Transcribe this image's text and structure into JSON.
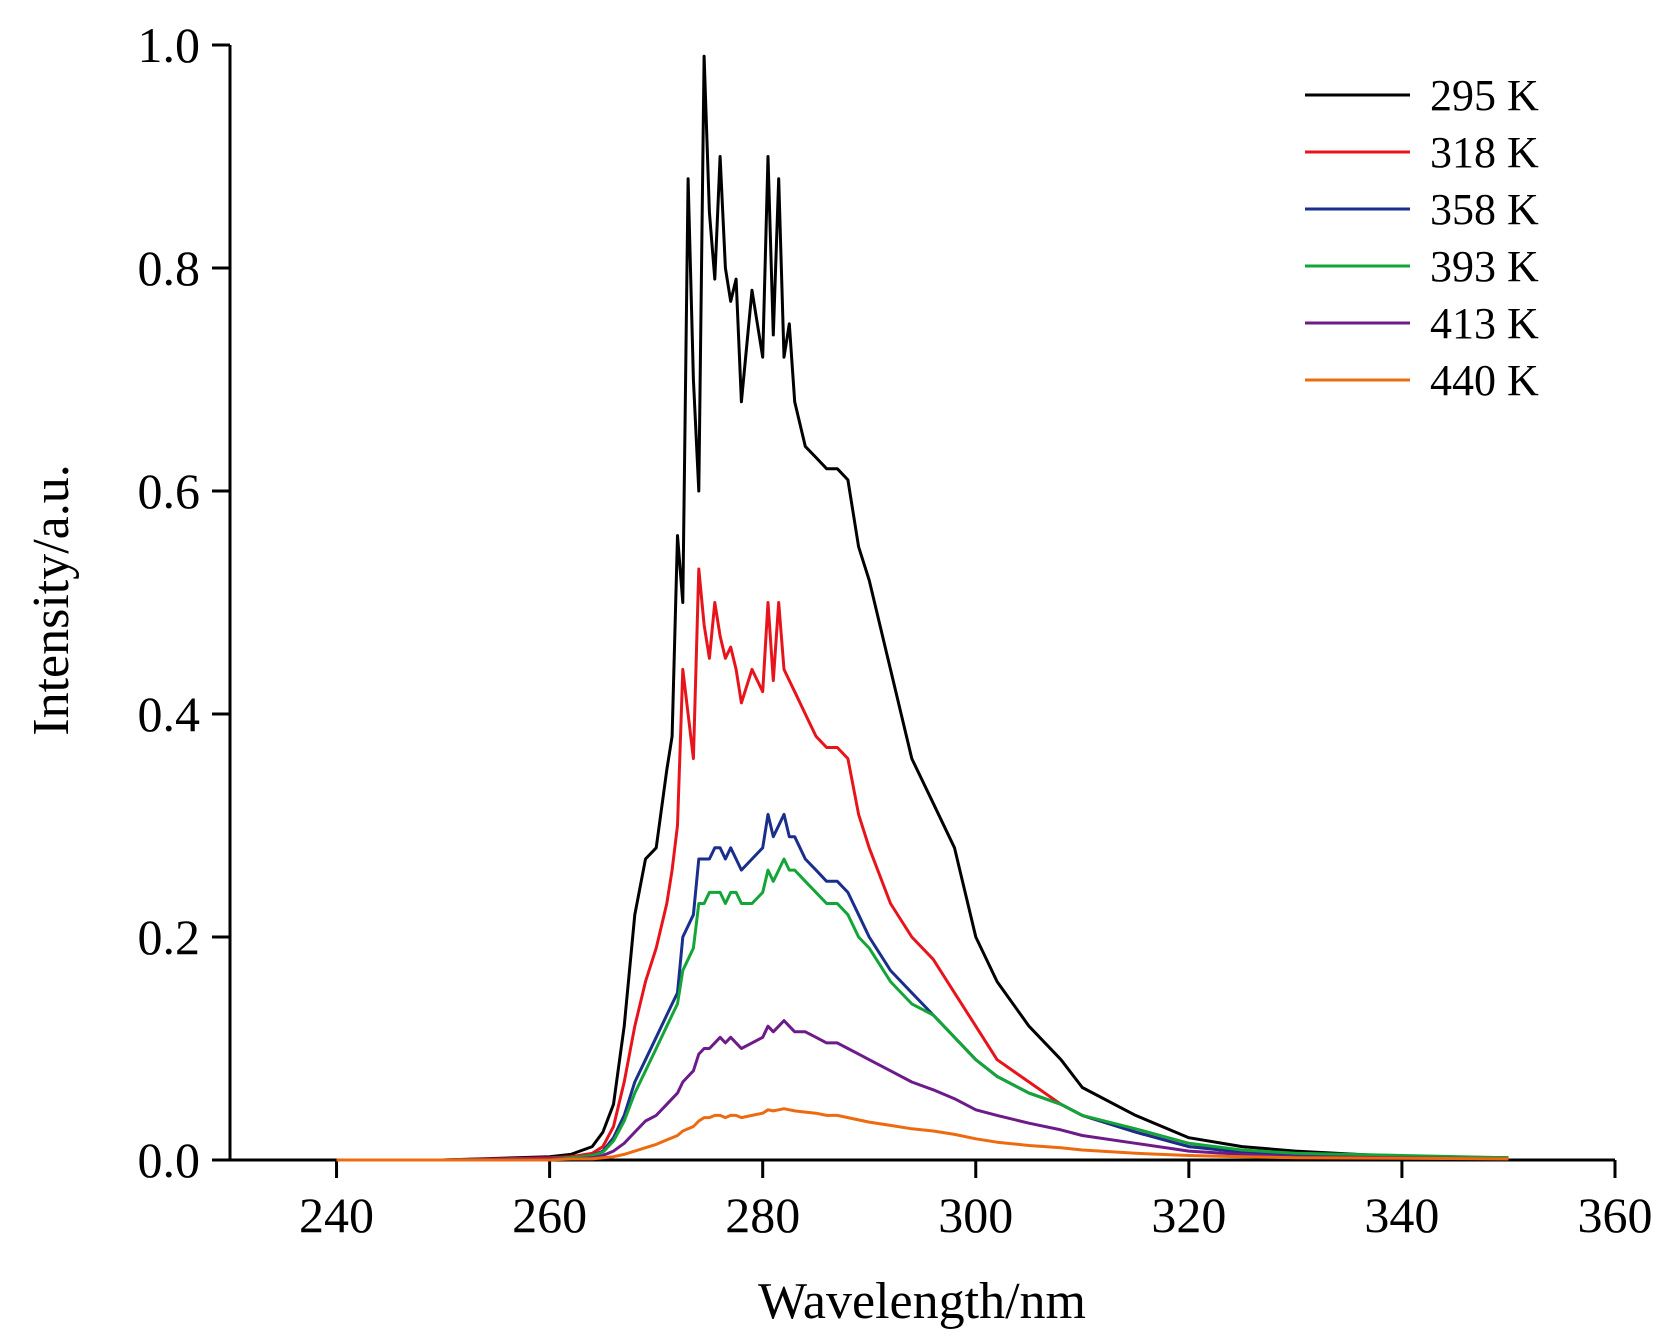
{
  "chart_data": {
    "type": "line",
    "title": "",
    "xlabel": "Wavelength/nm",
    "ylabel": "Intensity/a.u.",
    "xlim": [
      230,
      360
    ],
    "ylim": [
      0.0,
      1.0
    ],
    "xticks": [
      "240",
      "260",
      "280",
      "300",
      "320",
      "340",
      "360"
    ],
    "yticks": [
      "0.0",
      "0.2",
      "0.4",
      "0.6",
      "0.8",
      "1.0"
    ],
    "grid": false,
    "legend_position": "top-right",
    "x": [
      240,
      250,
      260,
      262,
      264,
      265,
      266,
      267,
      268,
      269,
      270,
      271,
      271.5,
      272,
      272.5,
      273,
      273.5,
      274,
      274.5,
      275,
      275.5,
      276,
      276.5,
      277,
      277.5,
      278,
      279,
      280,
      280.5,
      281,
      281.5,
      282,
      282.5,
      283,
      284,
      285,
      286,
      287,
      288,
      289,
      290,
      292,
      294,
      296,
      298,
      300,
      302,
      305,
      308,
      310,
      315,
      320,
      325,
      330,
      340,
      350
    ],
    "series": [
      {
        "name": "295 K",
        "color": "#000000",
        "values": [
          0.0,
          0.0,
          0.003,
          0.005,
          0.012,
          0.025,
          0.05,
          0.12,
          0.22,
          0.27,
          0.28,
          0.35,
          0.38,
          0.56,
          0.5,
          0.88,
          0.7,
          0.6,
          0.99,
          0.85,
          0.79,
          0.9,
          0.8,
          0.77,
          0.79,
          0.68,
          0.78,
          0.72,
          0.9,
          0.74,
          0.88,
          0.72,
          0.75,
          0.68,
          0.64,
          0.63,
          0.62,
          0.62,
          0.61,
          0.55,
          0.52,
          0.44,
          0.36,
          0.32,
          0.28,
          0.2,
          0.16,
          0.12,
          0.09,
          0.065,
          0.04,
          0.02,
          0.012,
          0.008,
          0.003,
          0.002
        ]
      },
      {
        "name": "318 K",
        "color": "#e8141c",
        "values": [
          0.0,
          0.0,
          0.002,
          0.003,
          0.006,
          0.012,
          0.03,
          0.07,
          0.12,
          0.16,
          0.19,
          0.23,
          0.26,
          0.3,
          0.44,
          0.4,
          0.36,
          0.53,
          0.48,
          0.45,
          0.5,
          0.47,
          0.45,
          0.46,
          0.44,
          0.41,
          0.44,
          0.42,
          0.5,
          0.43,
          0.5,
          0.44,
          0.43,
          0.42,
          0.4,
          0.38,
          0.37,
          0.37,
          0.36,
          0.31,
          0.28,
          0.23,
          0.2,
          0.18,
          0.15,
          0.12,
          0.09,
          0.07,
          0.05,
          0.04,
          0.025,
          0.012,
          0.008,
          0.005,
          0.003,
          0.002
        ]
      },
      {
        "name": "358 K",
        "color": "#1a2e8c",
        "values": [
          0.0,
          0.0,
          0.001,
          0.002,
          0.004,
          0.008,
          0.02,
          0.04,
          0.07,
          0.09,
          0.11,
          0.13,
          0.14,
          0.15,
          0.2,
          0.21,
          0.22,
          0.27,
          0.27,
          0.27,
          0.28,
          0.28,
          0.27,
          0.28,
          0.27,
          0.26,
          0.27,
          0.28,
          0.31,
          0.29,
          0.3,
          0.31,
          0.29,
          0.29,
          0.27,
          0.26,
          0.25,
          0.25,
          0.24,
          0.22,
          0.2,
          0.17,
          0.15,
          0.13,
          0.11,
          0.09,
          0.075,
          0.06,
          0.05,
          0.04,
          0.025,
          0.012,
          0.007,
          0.004,
          0.002,
          0.001
        ]
      },
      {
        "name": "393 K",
        "color": "#13a538",
        "values": [
          0.0,
          0.0,
          0.001,
          0.002,
          0.004,
          0.007,
          0.017,
          0.035,
          0.06,
          0.08,
          0.1,
          0.12,
          0.13,
          0.14,
          0.17,
          0.18,
          0.19,
          0.23,
          0.23,
          0.24,
          0.24,
          0.24,
          0.23,
          0.24,
          0.24,
          0.23,
          0.23,
          0.24,
          0.26,
          0.25,
          0.26,
          0.27,
          0.26,
          0.26,
          0.25,
          0.24,
          0.23,
          0.23,
          0.22,
          0.2,
          0.19,
          0.16,
          0.14,
          0.13,
          0.11,
          0.09,
          0.075,
          0.06,
          0.05,
          0.04,
          0.028,
          0.015,
          0.009,
          0.006,
          0.004,
          0.002
        ]
      },
      {
        "name": "413 K",
        "color": "#6e1b8a",
        "values": [
          0.0,
          0.0,
          0.001,
          0.001,
          0.002,
          0.004,
          0.008,
          0.015,
          0.025,
          0.035,
          0.04,
          0.05,
          0.055,
          0.06,
          0.07,
          0.075,
          0.08,
          0.095,
          0.1,
          0.1,
          0.105,
          0.11,
          0.105,
          0.11,
          0.105,
          0.1,
          0.105,
          0.11,
          0.12,
          0.115,
          0.12,
          0.125,
          0.12,
          0.115,
          0.115,
          0.11,
          0.105,
          0.105,
          0.1,
          0.095,
          0.09,
          0.08,
          0.07,
          0.063,
          0.055,
          0.045,
          0.04,
          0.033,
          0.027,
          0.022,
          0.015,
          0.008,
          0.005,
          0.003,
          0.002,
          0.001
        ]
      },
      {
        "name": "440 K",
        "color": "#ee6a0f",
        "values": [
          0.0,
          0.0,
          0.0,
          0.001,
          0.001,
          0.002,
          0.003,
          0.005,
          0.008,
          0.011,
          0.014,
          0.018,
          0.02,
          0.022,
          0.026,
          0.028,
          0.03,
          0.035,
          0.038,
          0.038,
          0.04,
          0.04,
          0.038,
          0.04,
          0.04,
          0.038,
          0.04,
          0.042,
          0.045,
          0.044,
          0.045,
          0.046,
          0.045,
          0.044,
          0.043,
          0.042,
          0.04,
          0.04,
          0.038,
          0.036,
          0.034,
          0.031,
          0.028,
          0.026,
          0.023,
          0.019,
          0.016,
          0.013,
          0.011,
          0.009,
          0.006,
          0.004,
          0.003,
          0.002,
          0.0015,
          0.001
        ]
      }
    ]
  }
}
